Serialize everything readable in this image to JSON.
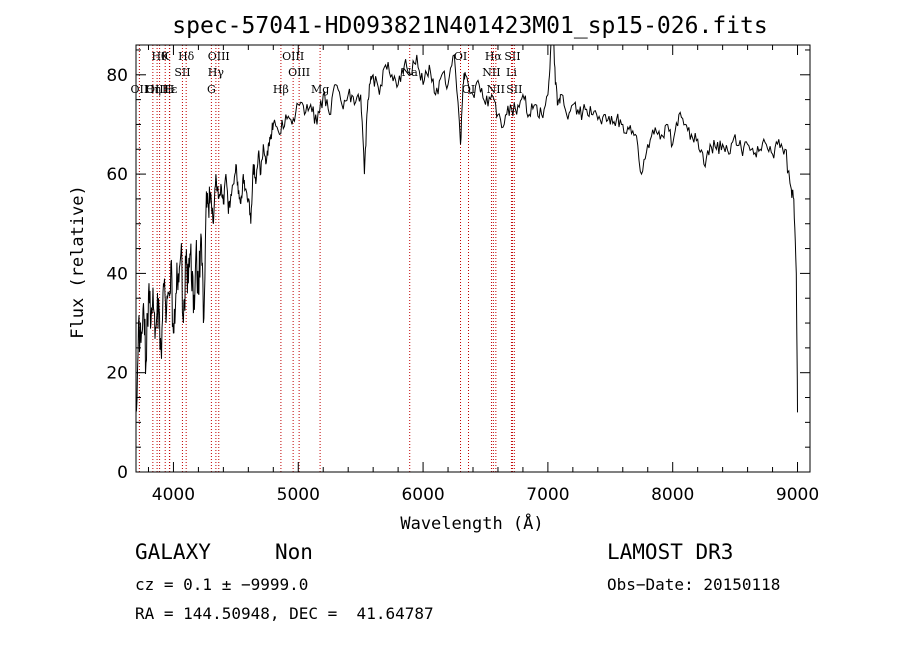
{
  "chart_data": {
    "type": "line",
    "title": "spec-57041-HD093821N401423M01_sp15-026.fits",
    "xlabel": "Wavelength (Å)",
    "ylabel": "Flux (relative)",
    "xlim": [
      3700,
      9100
    ],
    "ylim": [
      0,
      86
    ],
    "xticks": [
      4000,
      5000,
      6000,
      7000,
      8000,
      9000
    ],
    "yticks": [
      0,
      20,
      40,
      60,
      80
    ],
    "series": [
      {
        "name": "spectrum",
        "x": [
          3700,
          3720,
          3740,
          3760,
          3780,
          3800,
          3820,
          3840,
          3860,
          3880,
          3900,
          3920,
          3940,
          3960,
          3980,
          4000,
          4020,
          4040,
          4060,
          4080,
          4100,
          4120,
          4140,
          4160,
          4180,
          4200,
          4220,
          4240,
          4260,
          4280,
          4300,
          4320,
          4340,
          4360,
          4380,
          4400,
          4420,
          4440,
          4460,
          4480,
          4500,
          4520,
          4540,
          4560,
          4580,
          4600,
          4620,
          4640,
          4660,
          4680,
          4700,
          4720,
          4740,
          4760,
          4780,
          4800,
          4850,
          4900,
          4950,
          5000,
          5050,
          5100,
          5150,
          5200,
          5250,
          5300,
          5350,
          5400,
          5450,
          5500,
          5530,
          5550,
          5570,
          5600,
          5650,
          5700,
          5750,
          5800,
          5850,
          5900,
          5950,
          6000,
          6050,
          6100,
          6150,
          6200,
          6250,
          6300,
          6320,
          6340,
          6400,
          6450,
          6500,
          6550,
          6600,
          6650,
          6700,
          6750,
          6800,
          6850,
          6900,
          6950,
          7000,
          7020,
          7040,
          7060,
          7080,
          7100,
          7150,
          7200,
          7250,
          7300,
          7350,
          7400,
          7450,
          7500,
          7550,
          7600,
          7650,
          7700,
          7750,
          7800,
          7850,
          7900,
          7950,
          8000,
          8050,
          8100,
          8150,
          8200,
          8250,
          8300,
          8350,
          8400,
          8450,
          8500,
          8550,
          8600,
          8650,
          8700,
          8750,
          8800,
          8850,
          8900,
          8950,
          8970,
          8990,
          9000
        ],
        "values": [
          12,
          30,
          26,
          34,
          22,
          36,
          30,
          33,
          29,
          35,
          25,
          38,
          30,
          36,
          42,
          28,
          36,
          40,
          44,
          30,
          42,
          38,
          46,
          32,
          44,
          36,
          48,
          30,
          52,
          54,
          56,
          50,
          60,
          55,
          58,
          54,
          60,
          52,
          56,
          58,
          62,
          56,
          54,
          60,
          57,
          55,
          50,
          62,
          58,
          64,
          60,
          66,
          62,
          66,
          68,
          70,
          68,
          72,
          70,
          74,
          72,
          74,
          70,
          76,
          72,
          78,
          74,
          76,
          74,
          76,
          60,
          72,
          78,
          80,
          76,
          82,
          80,
          78,
          82,
          80,
          84,
          78,
          82,
          76,
          80,
          78,
          84,
          66,
          78,
          80,
          76,
          78,
          74,
          76,
          72,
          70,
          74,
          72,
          76,
          72,
          74,
          72,
          76,
          84,
          90,
          78,
          74,
          76,
          72,
          74,
          72,
          73,
          72,
          71,
          72,
          70,
          71,
          70,
          69,
          68,
          60,
          66,
          68,
          67,
          70,
          66,
          72,
          70,
          68,
          67,
          62,
          66,
          65,
          66,
          64,
          68,
          65,
          66,
          64,
          65,
          66,
          64,
          67,
          65,
          57,
          55,
          40,
          12
        ]
      }
    ],
    "line_markers": [
      {
        "label": "OII",
        "x": 3727,
        "tier": 3
      },
      {
        "label": "OIII",
        "x": 3869,
        "tier": 4
      },
      {
        "label": "Hθ",
        "x": 3889,
        "tier": 1
      },
      {
        "label": "Hε",
        "x": 3970,
        "tier": 3
      },
      {
        "label": "Hη",
        "x": 3835,
        "tier": 4
      },
      {
        "label": "K",
        "x": 3934,
        "tier": 1
      },
      {
        "label": "H",
        "x": 3968,
        "tier": 4
      },
      {
        "label": "Hδ",
        "x": 4102,
        "tier": 1
      },
      {
        "label": "SII",
        "x": 4072,
        "tier": 2
      },
      {
        "label": "OIII",
        "x": 4363,
        "tier": 1
      },
      {
        "label": "Hγ",
        "x": 4340,
        "tier": 2
      },
      {
        "label": "G",
        "x": 4304,
        "tier": 3
      },
      {
        "label": "Hβ",
        "x": 4861,
        "tier": 3
      },
      {
        "label": "OIII",
        "x": 4959,
        "tier": 1
      },
      {
        "label": "OIII",
        "x": 5007,
        "tier": 2
      },
      {
        "label": "Mg",
        "x": 5175,
        "tier": 3
      },
      {
        "label": "Na",
        "x": 5893,
        "tier": 2
      },
      {
        "label": "OI",
        "x": 6300,
        "tier": 1
      },
      {
        "label": "OI",
        "x": 6364,
        "tier": 3
      },
      {
        "label": "Hα",
        "x": 6563,
        "tier": 1
      },
      {
        "label": "NII",
        "x": 6548,
        "tier": 2
      },
      {
        "label": "NII",
        "x": 6583,
        "tier": 3
      },
      {
        "label": "SII",
        "x": 6716,
        "tier": 1
      },
      {
        "label": "Li",
        "x": 6708,
        "tier": 2
      },
      {
        "label": "SII",
        "x": 6731,
        "tier": 3
      }
    ]
  },
  "info": {
    "class": "GALAXY",
    "subclass": "Non",
    "survey": "LAMOST DR3",
    "cz": "cz = 0.1 ± −9999.0",
    "obs_date": "Obs−Date: 20150118",
    "coords": "RA = 144.50948, DEC =  41.64787"
  },
  "colors": {
    "spectrum": "#000000",
    "marker_line": "#c00000",
    "axis": "#000000"
  }
}
